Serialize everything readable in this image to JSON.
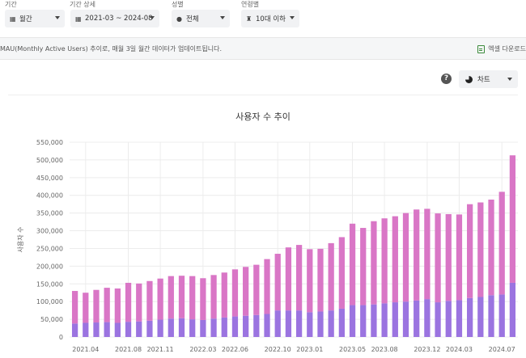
{
  "filters": {
    "period": {
      "label": "기간",
      "value": "월간",
      "icon": "calendar-icon"
    },
    "period_detail": {
      "label": "기간 상세",
      "value": "2021-03 ~ 2024-08",
      "icon": "calendar-icon"
    },
    "gender": {
      "label": "성별",
      "value": "전체",
      "icon": "person-icon"
    },
    "age": {
      "label": "연령별",
      "value": "10대 이하",
      "icon": "cake-icon"
    }
  },
  "notice": {
    "text": "MAU(Monthly Active Users) 추이로, 매월 3일 월간 데이터가 업데이트됩니다.",
    "excel_label": "엑셀 다운로드"
  },
  "chart_controls": {
    "type_value": "차트"
  },
  "chart_data": {
    "type": "bar",
    "stacked": true,
    "title": "사용자 수 추이",
    "ylabel": "사용자 수",
    "xlabel": "",
    "ylim": [
      0,
      550000
    ],
    "yticks": [
      0,
      50000,
      100000,
      150000,
      200000,
      250000,
      300000,
      350000,
      400000,
      450000,
      500000,
      550000
    ],
    "ytick_labels": [
      "0",
      "50,000",
      "100,000",
      "150,000",
      "200,000",
      "250,000",
      "300,000",
      "350,000",
      "400,000",
      "450,000",
      "500,000",
      "550,000"
    ],
    "xtick_labels": [
      {
        "index": 1,
        "label": "2021.04"
      },
      {
        "index": 5,
        "label": "2021.08"
      },
      {
        "index": 8,
        "label": "2021.11"
      },
      {
        "index": 12,
        "label": "2022.03"
      },
      {
        "index": 15,
        "label": "2022.06"
      },
      {
        "index": 19,
        "label": "2022.10"
      },
      {
        "index": 22,
        "label": "2023.01"
      },
      {
        "index": 26,
        "label": "2023.05"
      },
      {
        "index": 29,
        "label": "2023.08"
      },
      {
        "index": 33,
        "label": "2023.12"
      },
      {
        "index": 36,
        "label": "2024.03"
      },
      {
        "index": 40,
        "label": "2024.07"
      }
    ],
    "categories": [
      "2021.03",
      "2021.04",
      "2021.05",
      "2021.06",
      "2021.07",
      "2021.08",
      "2021.09",
      "2021.10",
      "2021.11",
      "2021.12",
      "2022.01",
      "2022.02",
      "2022.03",
      "2022.04",
      "2022.05",
      "2022.06",
      "2022.07",
      "2022.08",
      "2022.09",
      "2022.10",
      "2022.11",
      "2022.12",
      "2023.01",
      "2023.02",
      "2023.03",
      "2023.04",
      "2023.05",
      "2023.06",
      "2023.07",
      "2023.08",
      "2023.09",
      "2023.10",
      "2023.11",
      "2023.12",
      "2024.01",
      "2024.02",
      "2024.03",
      "2024.04",
      "2024.05",
      "2024.06",
      "2024.07",
      "2024.08"
    ],
    "series": [
      {
        "color": "#9b74e0",
        "values": [
          38000,
          40000,
          41000,
          42000,
          40000,
          43000,
          44000,
          46000,
          49000,
          52000,
          53000,
          50000,
          48000,
          52000,
          55000,
          58000,
          60000,
          62000,
          65000,
          75000,
          75000,
          75000,
          70000,
          72000,
          75000,
          80000,
          90000,
          90000,
          92000,
          95000,
          98000,
          100000,
          103000,
          107000,
          98000,
          102000,
          104000,
          110000,
          113000,
          118000,
          120000,
          153000
        ]
      },
      {
        "color": "#d976c6",
        "values": [
          92000,
          85000,
          92000,
          97000,
          97000,
          110000,
          107000,
          112000,
          116000,
          120000,
          120000,
          122000,
          118000,
          123000,
          127000,
          133000,
          138000,
          142000,
          155000,
          160000,
          178000,
          185000,
          178000,
          177000,
          190000,
          202000,
          230000,
          218000,
          235000,
          240000,
          243000,
          250000,
          257000,
          255000,
          251000,
          245000,
          242000,
          265000,
          267000,
          270000,
          290000,
          360000
        ]
      }
    ]
  }
}
